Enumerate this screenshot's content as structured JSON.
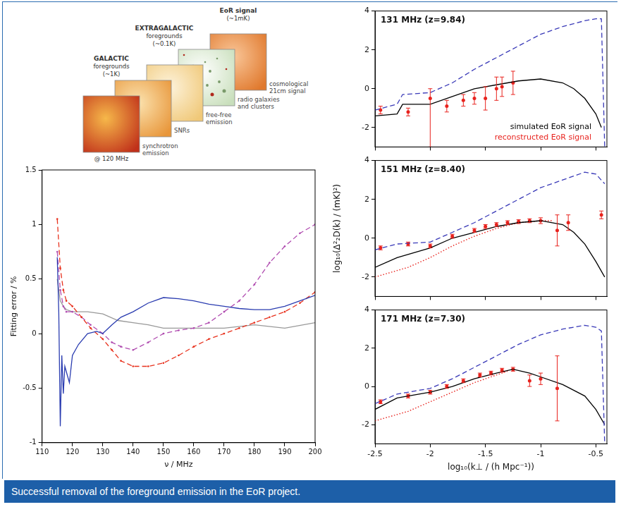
{
  "diagram": {
    "groups": [
      {
        "lines": [
          "GALACTIC",
          "foregrounds",
          "(~1K)"
        ]
      },
      {
        "lines": [
          "EXTRAGALACTIC",
          "foregrounds",
          "(~0.1K)"
        ]
      },
      {
        "lines": [
          "EoR signal",
          "(~1mK)"
        ]
      }
    ],
    "components": [
      "synchrotron emission",
      "SNRs",
      "free-free emission",
      "radio galaxies and clusters",
      "cosmological 21cm signal"
    ],
    "frequency_label": "@ 120 MHz"
  },
  "chart_data": [
    {
      "type": "line",
      "xlabel": "ν / MHz",
      "ylabel": "Fitting error / %",
      "xlim": [
        110,
        200
      ],
      "xticks": [
        110,
        120,
        130,
        140,
        150,
        160,
        170,
        180,
        190,
        200
      ],
      "ylim": [
        -1,
        1.5
      ],
      "yticks": [
        -1,
        -0.5,
        0,
        0.5,
        1,
        1.5
      ],
      "grid": false,
      "series": [
        {
          "color": "#2a3cb0",
          "line_style": "solid",
          "marker": "none",
          "x": [
            115,
            115.5,
            116,
            116.5,
            117,
            117.5,
            118,
            119,
            120,
            122,
            125,
            128,
            130,
            133,
            136,
            140,
            145,
            150,
            155,
            160,
            165,
            170,
            175,
            180,
            185,
            190,
            195,
            200
          ],
          "values": [
            0.7,
            0.2,
            -0.85,
            -0.2,
            -0.55,
            -0.3,
            -0.35,
            -0.45,
            -0.2,
            -0.1,
            0,
            0.02,
            0,
            0.08,
            0.15,
            0.2,
            0.28,
            0.33,
            0.32,
            0.3,
            0.27,
            0.25,
            0.23,
            0.22,
            0.22,
            0.25,
            0.3,
            0.35
          ]
        },
        {
          "color": "#e8321e",
          "line_style": "dashed",
          "marker": "circle",
          "x": [
            115,
            116,
            117,
            118,
            120,
            123,
            126,
            130,
            133,
            136,
            140,
            145,
            150,
            155,
            160,
            165,
            170,
            175,
            180,
            185,
            190,
            195,
            200
          ],
          "values": [
            1.05,
            0.6,
            0.4,
            0.3,
            0.25,
            0.15,
            0.05,
            -0.05,
            -0.15,
            -0.25,
            -0.3,
            -0.3,
            -0.27,
            -0.2,
            -0.12,
            -0.05,
            0,
            0.05,
            0.1,
            0.15,
            0.2,
            0.28,
            0.38
          ]
        },
        {
          "color": "#b04cb0",
          "line_style": "dashed",
          "marker": "circle",
          "x": [
            115,
            116,
            117,
            118,
            120,
            123,
            126,
            130,
            133,
            136,
            140,
            145,
            150,
            155,
            160,
            165,
            170,
            175,
            180,
            185,
            190,
            195,
            200
          ],
          "values": [
            0.75,
            0.4,
            0.25,
            0.2,
            0.2,
            0.15,
            0.08,
            0,
            -0.08,
            -0.12,
            -0.15,
            -0.08,
            0,
            0.03,
            0.05,
            0.1,
            0.2,
            0.3,
            0.45,
            0.65,
            0.8,
            0.92,
            1.0
          ]
        },
        {
          "color": "#999999",
          "line_style": "solid",
          "marker": "none",
          "x": [
            115,
            116,
            117,
            118,
            120,
            125,
            130,
            135,
            140,
            145,
            150,
            160,
            170,
            180,
            190,
            200
          ],
          "values": [
            0.5,
            0.3,
            0.25,
            0.22,
            0.2,
            0.2,
            0.18,
            0.12,
            0.1,
            0.08,
            0.05,
            0.05,
            0.05,
            0.08,
            0.05,
            0.1
          ]
        }
      ]
    },
    {
      "type": "line",
      "title": "131 MHz (z=9.84)",
      "legend": "lower right",
      "tick_labels": "y",
      "xlim": [
        -2.5,
        -0.4
      ],
      "xticks": [
        -2.5,
        -2,
        -1.5,
        -1,
        -0.5
      ],
      "ylim": [
        -3,
        4
      ],
      "yticks": [
        -2,
        0,
        2,
        4
      ],
      "grid": false,
      "series": [
        {
          "type": "line",
          "color": "#3a3ab8",
          "line_style": "dashed",
          "marker": "none",
          "x": [
            -2.5,
            -2.3,
            -2.25,
            -2,
            -1.8,
            -1.6,
            -1.4,
            -1.2,
            -1,
            -0.8,
            -0.6,
            -0.5,
            -0.45,
            -0.42
          ],
          "values": [
            -1.1,
            -0.8,
            -0.3,
            -0.2,
            0.3,
            1.0,
            1.6,
            2.2,
            2.8,
            3.2,
            3.5,
            3.6,
            3.6,
            -3
          ]
        },
        {
          "type": "line",
          "name": "simulated EoR signal",
          "color": "#000000",
          "line_style": "solid",
          "marker": "none",
          "x": [
            -2.5,
            -2.3,
            -2.25,
            -2,
            -1.8,
            -1.6,
            -1.4,
            -1.2,
            -1,
            -0.8,
            -0.7,
            -0.6,
            -0.5,
            -0.45
          ],
          "values": [
            -1.4,
            -1.3,
            -0.8,
            -0.8,
            -0.4,
            0,
            0.2,
            0.4,
            0.5,
            0.3,
            0,
            -0.5,
            -1.3,
            -2.0
          ]
        },
        {
          "type": "scatter",
          "name": "reconstructed EoR signal",
          "color": "#e8231e",
          "marker": "circle",
          "x": [
            -2.45,
            -2.2,
            -2.0,
            -1.85,
            -1.7,
            -1.6,
            -1.5,
            -1.4,
            -1.35,
            -1.25
          ],
          "values": [
            -1.1,
            -1.2,
            -0.5,
            -0.9,
            -0.6,
            -0.5,
            -0.5,
            0,
            0.1,
            0.3
          ],
          "err_minus": [
            0.2,
            0.2,
            2.5,
            0.3,
            0.3,
            0.3,
            0.6,
            0.6,
            0.5,
            0.6
          ],
          "err_plus": [
            0.2,
            0.2,
            0.5,
            0.3,
            0.3,
            0.3,
            0.6,
            0.6,
            0.5,
            0.6
          ]
        }
      ]
    },
    {
      "type": "line",
      "title": "151 MHz (z=8.40)",
      "tick_labels": "y",
      "ylabel": "log₁₀(Δ²₂D(k) / (mK)²)",
      "xlim": [
        -2.5,
        -0.4
      ],
      "xticks": [
        -2.5,
        -2,
        -1.5,
        -1,
        -0.5
      ],
      "ylim": [
        -3,
        4
      ],
      "yticks": [
        -2,
        0,
        2,
        4
      ],
      "grid": false,
      "series": [
        {
          "type": "line",
          "color": "#3a3ab8",
          "line_style": "dashed",
          "marker": "none",
          "x": [
            -2.5,
            -2.3,
            -2,
            -1.8,
            -1.6,
            -1.4,
            -1.2,
            -1,
            -0.8,
            -0.6,
            -0.5,
            -0.42
          ],
          "values": [
            -0.6,
            -0.3,
            -0.2,
            0.3,
            0.8,
            1.4,
            2.0,
            2.6,
            3.0,
            3.4,
            3.3,
            2.8
          ]
        },
        {
          "type": "line",
          "color": "#000000",
          "line_style": "solid",
          "marker": "none",
          "x": [
            -2.5,
            -2.3,
            -2,
            -1.8,
            -1.6,
            -1.4,
            -1.2,
            -1,
            -0.8,
            -0.7,
            -0.6,
            -0.5,
            -0.42
          ],
          "values": [
            -1.5,
            -1.0,
            -0.5,
            0,
            0.3,
            0.6,
            0.8,
            0.9,
            0.7,
            0.3,
            -0.3,
            -1.2,
            -2.0
          ]
        },
        {
          "type": "line",
          "color": "#e8231e",
          "line_style": "dotted",
          "marker": "none",
          "x": [
            -2.5,
            -2.2,
            -2,
            -1.8,
            -1.6,
            -1.4,
            -1.2,
            -1,
            -0.9
          ],
          "values": [
            -2.0,
            -1.5,
            -1.0,
            -0.4,
            0.1,
            0.5,
            0.8,
            0.9,
            0.9
          ]
        },
        {
          "type": "scatter",
          "color": "#e8231e",
          "marker": "circle",
          "x": [
            -2.45,
            -2.2,
            -2.0,
            -1.8,
            -1.6,
            -1.5,
            -1.4,
            -1.3,
            -1.2,
            -1.1,
            -1.0,
            -0.85,
            -0.75,
            -0.45
          ],
          "values": [
            -0.5,
            -0.3,
            -0.4,
            0.1,
            0.4,
            0.6,
            0.7,
            0.8,
            0.85,
            0.9,
            0.9,
            0.4,
            0.8,
            1.2
          ],
          "err_minus": [
            0.1,
            0.1,
            0.1,
            0.1,
            0.1,
            0.1,
            0.1,
            0.1,
            0.1,
            0.1,
            0.15,
            0.8,
            0.4,
            0.2
          ],
          "err_plus": [
            0.1,
            0.1,
            0.1,
            0.1,
            0.1,
            0.1,
            0.1,
            0.1,
            0.1,
            0.1,
            0.15,
            0.8,
            0.4,
            0.2
          ]
        }
      ]
    },
    {
      "type": "line",
      "title": "171 MHz (z=7.30)",
      "xlabel": "log₁₀(k⊥ / (h Mpc⁻¹))",
      "xlim": [
        -2.5,
        -0.4
      ],
      "xticks": [
        -2.5,
        -2,
        -1.5,
        -1,
        -0.5
      ],
      "ylim": [
        -3,
        4
      ],
      "yticks": [
        -2,
        0,
        2,
        4
      ],
      "grid": false,
      "series": [
        {
          "type": "line",
          "color": "#3a3ab8",
          "line_style": "dashed",
          "marker": "none",
          "x": [
            -2.5,
            -2.3,
            -2,
            -1.8,
            -1.6,
            -1.4,
            -1.2,
            -1,
            -0.8,
            -0.6,
            -0.5,
            -0.45,
            -0.42
          ],
          "values": [
            -0.9,
            -0.4,
            -0.1,
            0.4,
            1.0,
            1.6,
            2.2,
            2.7,
            3.0,
            3.2,
            3.1,
            2.9,
            -3
          ]
        },
        {
          "type": "line",
          "color": "#000000",
          "line_style": "solid",
          "marker": "none",
          "x": [
            -2.5,
            -2.3,
            -2,
            -1.8,
            -1.6,
            -1.4,
            -1.25,
            -1.1,
            -1,
            -0.8,
            -0.6,
            -0.5,
            -0.42
          ],
          "values": [
            -1.2,
            -0.6,
            -0.3,
            0,
            0.4,
            0.7,
            0.9,
            0.7,
            0.5,
            0.1,
            -0.5,
            -1.2,
            -2.0
          ]
        },
        {
          "type": "line",
          "color": "#e8231e",
          "line_style": "dotted",
          "marker": "none",
          "x": [
            -2.5,
            -2.2,
            -2,
            -1.8,
            -1.6,
            -1.4,
            -1.3
          ],
          "values": [
            -1.8,
            -1.3,
            -0.8,
            -0.3,
            0.2,
            0.6,
            0.8
          ]
        },
        {
          "type": "scatter",
          "color": "#e8231e",
          "marker": "circle",
          "x": [
            -2.45,
            -2.2,
            -2.0,
            -1.85,
            -1.7,
            -1.55,
            -1.45,
            -1.35,
            -1.25,
            -1.1,
            -1.0,
            -0.85
          ],
          "values": [
            -0.8,
            -0.5,
            -0.3,
            0,
            0.3,
            0.6,
            0.7,
            0.85,
            0.9,
            0.3,
            0.4,
            -0.1
          ],
          "err_minus": [
            0.1,
            0.1,
            0.1,
            0.1,
            0.1,
            0.1,
            0.1,
            0.1,
            0.1,
            0.3,
            0.3,
            1.7
          ],
          "err_plus": [
            0.1,
            0.1,
            0.1,
            0.1,
            0.1,
            0.1,
            0.1,
            0.1,
            0.1,
            0.3,
            0.3,
            1.7
          ]
        }
      ]
    }
  ],
  "caption": "Successful removal of the foreground emission in the EoR project."
}
